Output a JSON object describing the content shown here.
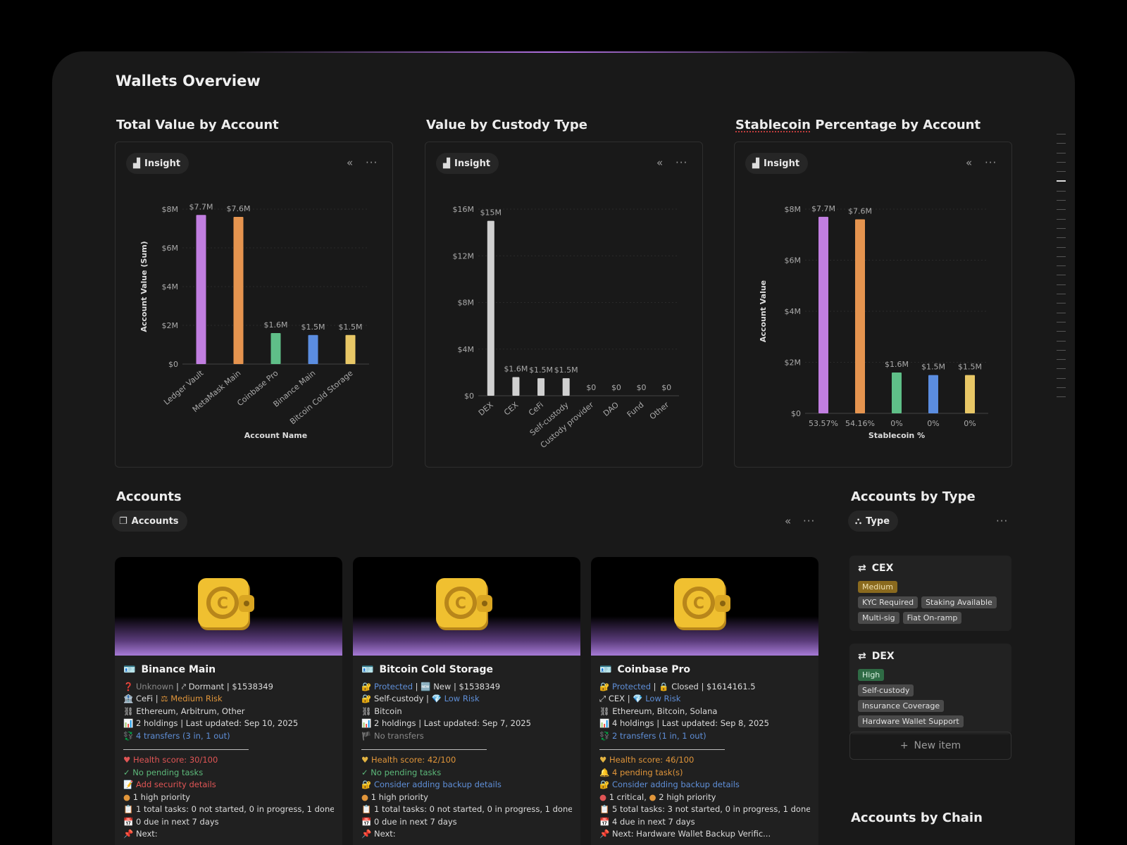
{
  "page": {
    "title": "Wallets Overview"
  },
  "insight_chip": "Insight",
  "controls": {
    "collapse": "«",
    "more": "···"
  },
  "charts": [
    {
      "title": "Total Value by Account",
      "chart_data": {
        "type": "bar",
        "title": "Total Value by Account",
        "xlabel": "Account Name",
        "ylabel": "Account Value (Sum)",
        "ylim": [
          0,
          8000000
        ],
        "yticks": [
          "$0",
          "$2M",
          "$4M",
          "$6M",
          "$8M"
        ],
        "categories": [
          "Ledger Vault",
          "MetaMask Main",
          "Coinbase Pro",
          "Binance Main",
          "Bitcoin Cold Storage"
        ],
        "values": [
          7700000,
          7600000,
          1600000,
          1500000,
          1500000
        ],
        "data_labels": [
          "$7.7M",
          "$7.6M",
          "$1.6M",
          "$1.5M",
          "$1.5M"
        ],
        "colors": [
          "#c17ee0",
          "#e5944f",
          "#5fbf88",
          "#5b8de0",
          "#e8c766"
        ]
      }
    },
    {
      "title": "Value by Custody Type",
      "chart_data": {
        "type": "bar",
        "title": "Value by Custody Type",
        "xlabel": "",
        "ylabel": "",
        "ylim": [
          0,
          16000000
        ],
        "yticks": [
          "$0",
          "$4M",
          "$8M",
          "$12M",
          "$16M"
        ],
        "categories": [
          "DEX",
          "CEX",
          "CeFi",
          "Self-custody",
          "Custody provider",
          "DAO",
          "Fund",
          "Other"
        ],
        "values": [
          15000000,
          1600000,
          1500000,
          1500000,
          0,
          0,
          0,
          0
        ],
        "data_labels": [
          "$15M",
          "$1.6M",
          "$1.5M",
          "$1.5M",
          "$0",
          "$0",
          "$0",
          "$0"
        ],
        "colors": [
          "#d0d0d0",
          "#d0d0d0",
          "#d0d0d0",
          "#d0d0d0",
          "#d0d0d0",
          "#d0d0d0",
          "#d0d0d0",
          "#d0d0d0"
        ]
      }
    },
    {
      "title": "Stablecoin Percentage by Account",
      "title_part1": "Stablecoin",
      "title_part2": " Percentage by Account",
      "chart_data": {
        "type": "bar",
        "title": "Stablecoin Percentage by Account",
        "xlabel": "Stablecoin %",
        "ylabel": "Account Value",
        "ylim": [
          0,
          8000000
        ],
        "yticks": [
          "$0",
          "$2M",
          "$4M",
          "$6M",
          "$8M"
        ],
        "categories": [
          "53.57%",
          "54.16%",
          "0%",
          "0%",
          "0%"
        ],
        "values": [
          7700000,
          7600000,
          1600000,
          1500000,
          1500000
        ],
        "data_labels": [
          "$7.7M",
          "$7.6M",
          "$1.6M",
          "$1.5M",
          "$1.5M"
        ],
        "colors": [
          "#c17ee0",
          "#e5944f",
          "#5fbf88",
          "#5b8de0",
          "#e8c766"
        ]
      }
    }
  ],
  "accounts": {
    "title": "Accounts",
    "chip": "Accounts",
    "cards": [
      {
        "name": "Binance Main",
        "l1a": "Unknown",
        "l1b": "Dormant",
        "l1c": " | $1538349",
        "l2a": "CeFi",
        "l2b": "Medium Risk",
        "l3": "Ethereum, Arbitrum, Other",
        "l4": "2 holdings | Last updated: Sep 10, 2025",
        "l5": "4 transfers (3 in, 1 out)",
        "h1": "Health score: 30/100",
        "h2": "No pending tasks",
        "h3": "Add security details",
        "h4": "1 high priority",
        "h5": "1 total tasks: 0 not started, 0 in progress, 1 done",
        "h6": "0 due in next 7 days",
        "h7": "Next:"
      },
      {
        "name": "Bitcoin Cold Storage",
        "l1a": "Protected",
        "l1b": "New",
        "l1c": " | $1538349",
        "l2a": "Self-custody",
        "l2b": "Low Risk",
        "l3": "Bitcoin",
        "l4": "2 holdings | Last updated: Sep 7, 2025",
        "l5": "No transfers",
        "h1": "Health score: 42/100",
        "h2": "No pending tasks",
        "h3": "Consider adding backup details",
        "h4": "1 high priority",
        "h5": "1 total tasks: 0 not started, 0 in progress, 1 done",
        "h6": "0 due in next 7 days",
        "h7": "Next:"
      },
      {
        "name": "Coinbase Pro",
        "l1a": "Protected",
        "l1b": "Closed",
        "l1c": " | $1614161.5",
        "l2a": "CEX",
        "l2b": "Low Risk",
        "l3": "Ethereum, Bitcoin, Solana",
        "l4": "4 holdings | Last updated: Sep 8, 2025",
        "l5": "2 transfers (1 in, 1 out)",
        "h1": "Health score: 46/100",
        "h2": "4 pending task(s)",
        "h3": "Consider adding backup details",
        "h4a": "1 critical,",
        "h4b": "2 high priority",
        "h5": "5 total tasks: 3 not started, 0 in progress, 1 done",
        "h6": "4 due in next 7 days",
        "h7": "Next: Hardware Wallet Backup Verific..."
      }
    ]
  },
  "accounts_by_type": {
    "title": "Accounts by Type",
    "chip": "Type",
    "groups": [
      {
        "name": "CEX",
        "risk": "Medium",
        "tags": [
          "KYC Required",
          "Staking Available",
          "Multi-sig",
          "Fiat On-ramp"
        ]
      },
      {
        "name": "DEX",
        "risk": "High",
        "tags": [
          "Self-custody",
          "Insurance Coverage",
          "Hardware Wallet Support"
        ]
      }
    ],
    "new_item": "New item"
  },
  "accounts_by_chain": {
    "title": "Accounts by Chain"
  }
}
